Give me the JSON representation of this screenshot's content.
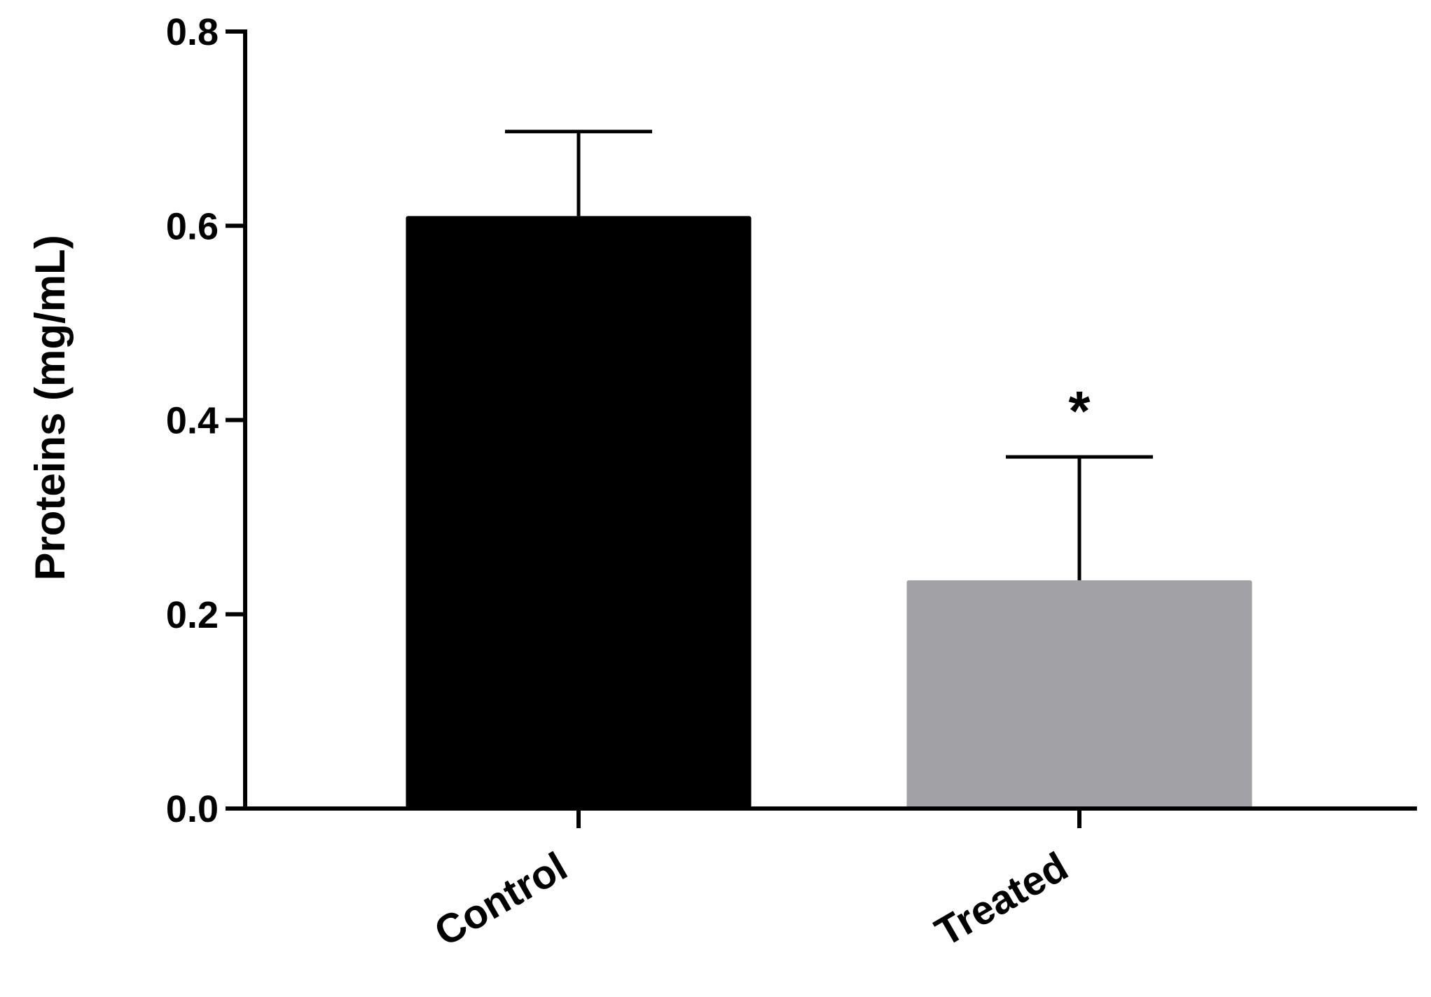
{
  "chart_data": {
    "type": "bar",
    "categories": [
      "Control",
      "Treated"
    ],
    "values": [
      0.61,
      0.235
    ],
    "errors": [
      0.087,
      0.127
    ],
    "colors": [
      "#000000",
      "#a2a1a6"
    ],
    "significance": [
      "",
      "*"
    ],
    "ylabel": "Proteins (mg/mL)",
    "xlabel": "",
    "ylim": [
      0,
      0.8
    ],
    "yticks": [
      "0.0",
      "0.2",
      "0.4",
      "0.6",
      "0.8"
    ],
    "grid": false
  }
}
